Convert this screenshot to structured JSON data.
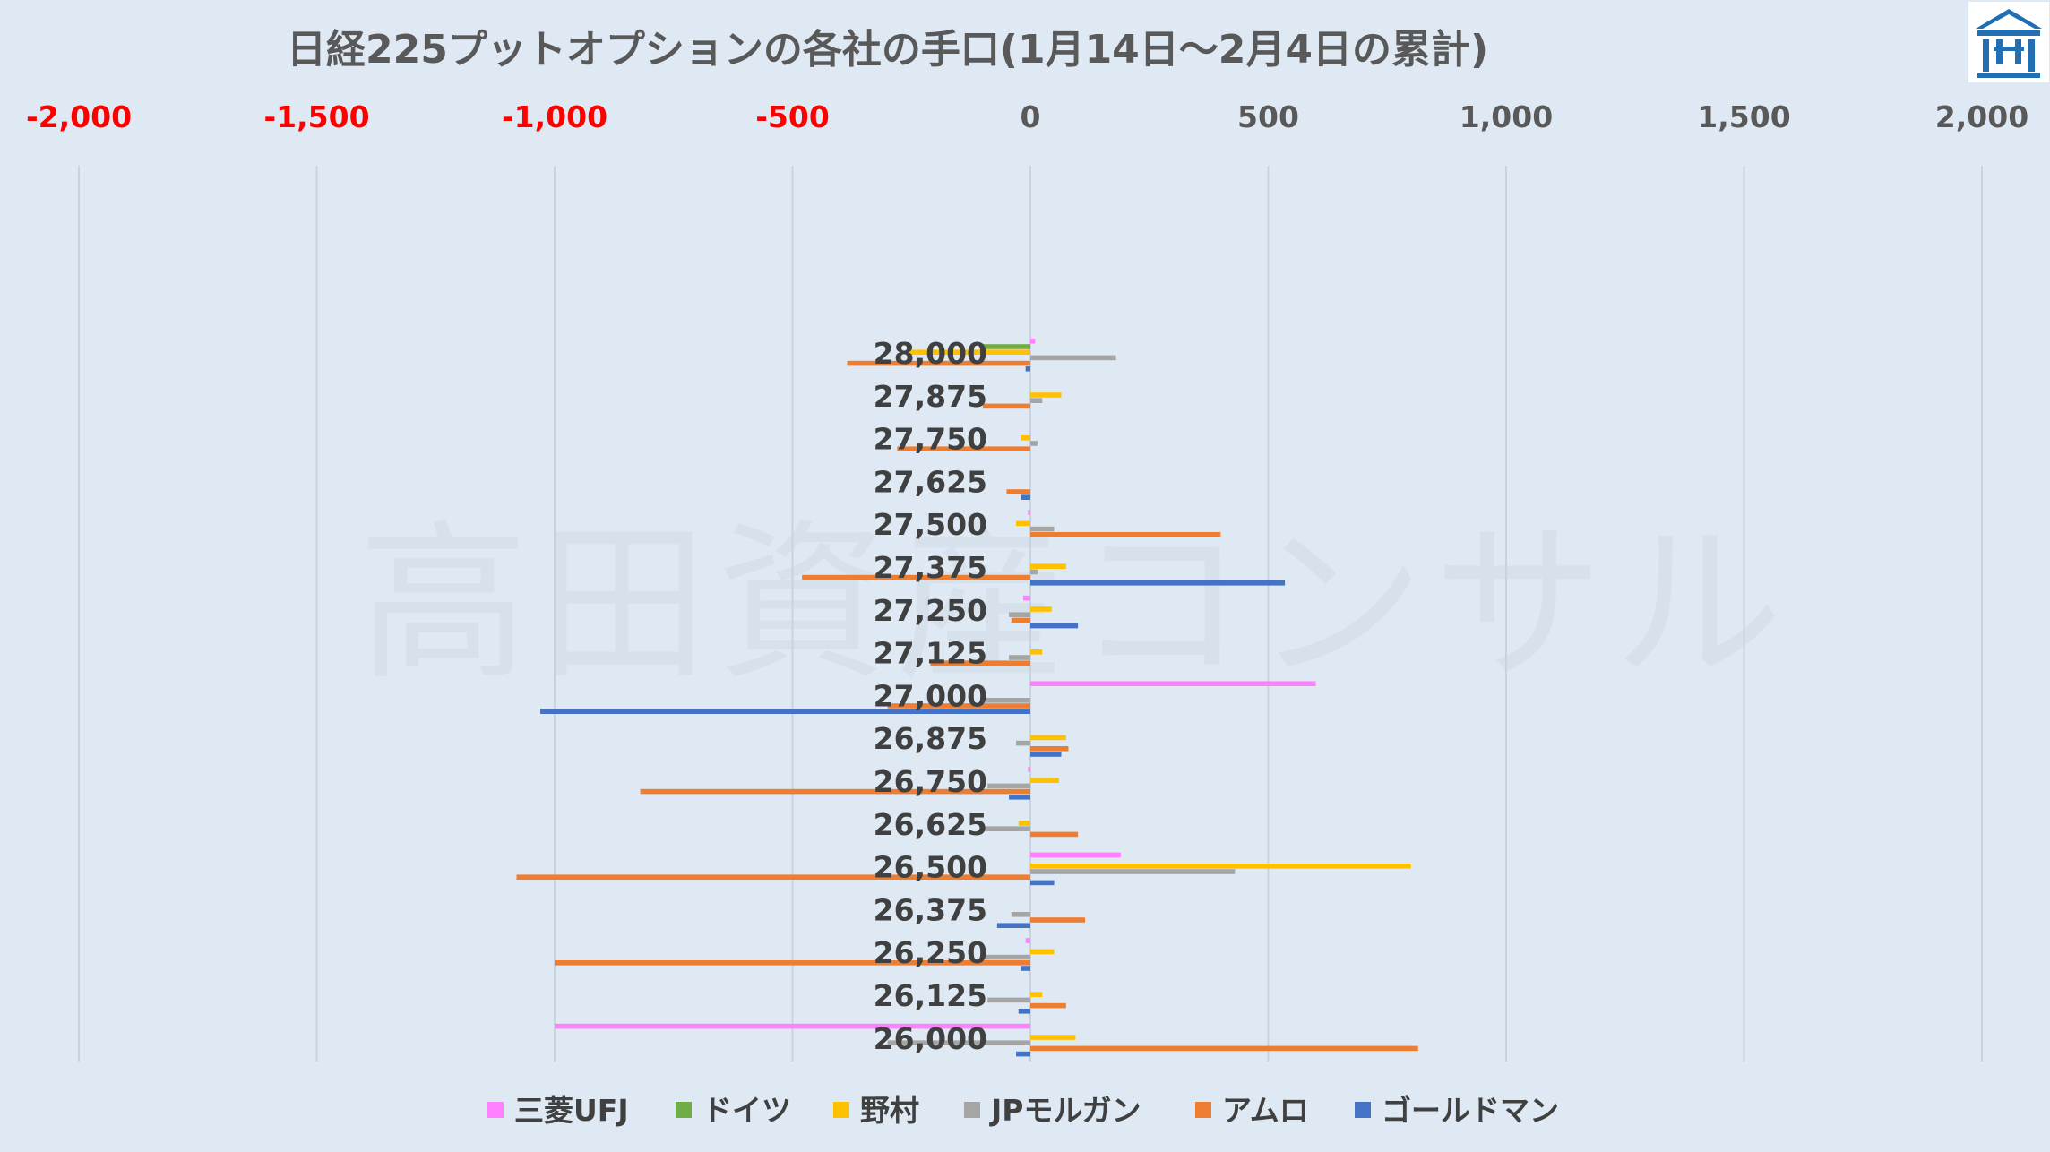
{
  "chart_data": {
    "type": "bar",
    "orientation": "horizontal",
    "title": "日経225プットオプションの各社の手口(1月14日～2月4日の累計)",
    "watermark": "高田資産コンサル",
    "xlim": [
      -2000,
      2000
    ],
    "x_ticks": [
      -2000,
      -1500,
      -1000,
      -500,
      0,
      500,
      1000,
      1500,
      2000
    ],
    "x_tick_labels": [
      "-2,000",
      "-1,500",
      "-1,000",
      "-500",
      "0",
      "500",
      "1,000",
      "1,500",
      "2,000"
    ],
    "x_axis_position": "top",
    "negative_tick_color": "#ff0000",
    "positive_tick_color": "#595959",
    "grid": "vertical",
    "legend_position": "bottom",
    "categories": [
      "28,000",
      "27,875",
      "27,750",
      "27,625",
      "27,500",
      "27,375",
      "27,250",
      "27,125",
      "27,000",
      "26,875",
      "26,750",
      "26,625",
      "26,500",
      "26,375",
      "26,250",
      "26,125",
      "26,000"
    ],
    "series": [
      {
        "name": "三菱UFJ",
        "color": "#ff80ff",
        "values": [
          10,
          0,
          0,
          0,
          -5,
          0,
          -15,
          0,
          600,
          0,
          -5,
          0,
          190,
          0,
          -10,
          0,
          -1000
        ]
      },
      {
        "name": "ドイツ",
        "color": "#70ad47",
        "values": [
          -100,
          0,
          0,
          0,
          0,
          0,
          0,
          0,
          0,
          0,
          0,
          0,
          0,
          0,
          0,
          0,
          0
        ]
      },
      {
        "name": "野村",
        "color": "#ffc000",
        "values": [
          -260,
          65,
          -20,
          0,
          -30,
          75,
          45,
          25,
          0,
          75,
          60,
          -25,
          800,
          0,
          50,
          25,
          95
        ]
      },
      {
        "name": "JPモルガン",
        "color": "#a5a5a5",
        "values": [
          180,
          25,
          15,
          0,
          50,
          15,
          -45,
          -45,
          -100,
          -30,
          -90,
          -100,
          430,
          -40,
          -100,
          -90,
          -300
        ]
      },
      {
        "name": "アムロ",
        "color": "#ed7d31",
        "values": [
          -385,
          -100,
          -280,
          -50,
          400,
          -480,
          -40,
          -210,
          -300,
          80,
          -820,
          100,
          -1080,
          115,
          -1000,
          75,
          815
        ]
      },
      {
        "name": "ゴールドマン",
        "color": "#4472c4",
        "values": [
          -10,
          0,
          0,
          -20,
          0,
          535,
          100,
          0,
          -1030,
          65,
          -45,
          0,
          50,
          -70,
          -20,
          -25,
          -30
        ]
      }
    ]
  },
  "logo": {
    "name": "company-logo"
  }
}
